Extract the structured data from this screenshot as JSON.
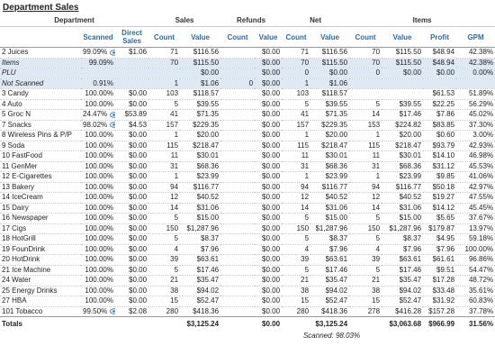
{
  "title": "Department Sales",
  "table": {
    "groups": [
      "Department",
      "Sales",
      "Refunds",
      "Net",
      "Items"
    ],
    "subheaders": [
      null,
      "Scanned",
      "Direct Sales",
      "Count",
      "Value",
      "Count",
      "Value",
      "Count",
      "Value",
      "Count",
      "Value",
      "Profit",
      "GPM"
    ],
    "rows": [
      {
        "cells": [
          "2 Juices",
          "99.09%",
          "$1.06",
          "71",
          "$116.56",
          null,
          "$0.00",
          "71",
          "$116.56",
          "70",
          "$115.50",
          "$48.94",
          "42.38%"
        ],
        "icon": true
      },
      {
        "cells": [
          "Items",
          "99.09%",
          null,
          "70",
          "$115.50",
          null,
          "$0.00",
          "70",
          "$115.50",
          "70",
          "$115.50",
          "$48.94",
          "42.38%"
        ],
        "kind": "sub"
      },
      {
        "cells": [
          "PLU",
          null,
          null,
          null,
          "$0.00",
          null,
          "$0.00",
          "0",
          "$0.00",
          "0",
          "$0.00",
          "$0.00",
          "0.00%"
        ],
        "kind": "sub"
      },
      {
        "cells": [
          "Not Scanned",
          "0.91%",
          null,
          "1",
          "$1.06",
          "0",
          "$0.00",
          "1",
          "$1.06",
          null,
          null,
          null,
          null
        ],
        "kind": "sub"
      },
      {
        "cells": [
          "3 Candy",
          "100.00%",
          "$0.00",
          "103",
          "$118.57",
          null,
          "$0.00",
          "103",
          "$118.57",
          null,
          null,
          "$61.53",
          "51.89%"
        ]
      },
      {
        "cells": [
          "4 Auto",
          "100.00%",
          "$0.00",
          "5",
          "$39.55",
          null,
          "$0.00",
          "5",
          "$39.55",
          "5",
          "$39.55",
          "$22.25",
          "56.29%"
        ]
      },
      {
        "cells": [
          "5 Groc N",
          "24.47%",
          "$53.89",
          "41",
          "$71.35",
          null,
          "$0.00",
          "41",
          "$71.35",
          "14",
          "$17.46",
          "$7.86",
          "45.02%"
        ],
        "icon": true
      },
      {
        "cells": [
          "7 Snacks",
          "98.02%",
          "$4.53",
          "157",
          "$229.35",
          null,
          "$0.00",
          "157",
          "$229.35",
          "153",
          "$224.82",
          "$83.85",
          "37.30%"
        ],
        "icon": true
      },
      {
        "cells": [
          "8 Wireless Pins & P/P",
          "100.00%",
          "$0.00",
          "1",
          "$20.00",
          null,
          "$0.00",
          "1",
          "$20.00",
          "1",
          "$20.00",
          "$0.60",
          "3.00%"
        ]
      },
      {
        "cells": [
          "9 Soda",
          "100.00%",
          "$0.00",
          "115",
          "$218.47",
          null,
          "$0.00",
          "115",
          "$218.47",
          "115",
          "$218.47",
          "$93.79",
          "42.93%"
        ]
      },
      {
        "cells": [
          "10 FastFood",
          "100.00%",
          "$0.00",
          "11",
          "$30.01",
          null,
          "$0.00",
          "11",
          "$30.01",
          "11",
          "$30.01",
          "$14.10",
          "46.98%"
        ]
      },
      {
        "cells": [
          "11 GenMer",
          "100.00%",
          "$0.00",
          "31",
          "$68.36",
          null,
          "$0.00",
          "31",
          "$68.36",
          "31",
          "$68.36",
          "$31.12",
          "45.53%"
        ]
      },
      {
        "cells": [
          "12 E-Cigarettes",
          "100.00%",
          "$0.00",
          "1",
          "$23.99",
          null,
          "$0.00",
          "1",
          "$23.99",
          "1",
          "$23.99",
          "$9.85",
          "41.06%"
        ]
      },
      {
        "cells": [
          "13 Bakery",
          "100.00%",
          "$0.00",
          "94",
          "$116.77",
          null,
          "$0.00",
          "94",
          "$116.77",
          "94",
          "$116.77",
          "$50.18",
          "42.97%"
        ]
      },
      {
        "cells": [
          "14 IceCream",
          "100.00%",
          "$0.00",
          "12",
          "$40.52",
          null,
          "$0.00",
          "12",
          "$40.52",
          "12",
          "$40.52",
          "$19.27",
          "47.55%"
        ]
      },
      {
        "cells": [
          "15 Dairy",
          "100.00%",
          "$0.00",
          "14",
          "$31.06",
          null,
          "$0.00",
          "14",
          "$31.06",
          "14",
          "$31.06",
          "$14.12",
          "45.45%"
        ]
      },
      {
        "cells": [
          "16 Newspaper",
          "100.00%",
          "$0.00",
          "5",
          "$15.00",
          null,
          "$0.00",
          "5",
          "$15.00",
          "5",
          "$15.00",
          "$5.65",
          "37.67%"
        ]
      },
      {
        "cells": [
          "17 Cigs",
          "100.00%",
          "$0.00",
          "150",
          "$1,287.96",
          null,
          "$0.00",
          "150",
          "$1,287.96",
          "150",
          "$1,287.96",
          "$179.87",
          "13.97%"
        ]
      },
      {
        "cells": [
          "18 HotGrill",
          "100.00%",
          "$0.00",
          "5",
          "$8.37",
          null,
          "$0.00",
          "5",
          "$8.37",
          "5",
          "$8.37",
          "$4.95",
          "59.18%"
        ]
      },
      {
        "cells": [
          "19 FounDrink",
          "100.00%",
          "$0.00",
          "4",
          "$7.96",
          null,
          "$0.00",
          "4",
          "$7.96",
          "4",
          "$7.96",
          "$7.96",
          "100.00%"
        ]
      },
      {
        "cells": [
          "20 HotDrink",
          "100.00%",
          "$0.00",
          "39",
          "$63.61",
          null,
          "$0.00",
          "39",
          "$63.61",
          "39",
          "$63.61",
          "$61.61",
          "96.86%"
        ]
      },
      {
        "cells": [
          "21 Ice Machine",
          "100.00%",
          "$0.00",
          "5",
          "$17.46",
          null,
          "$0.00",
          "5",
          "$17.46",
          "5",
          "$17.46",
          "$9.51",
          "54.47%"
        ]
      },
      {
        "cells": [
          "24 Water",
          "100.00%",
          "$0.00",
          "21",
          "$35.47",
          null,
          "$0.00",
          "21",
          "$35.47",
          "21",
          "$35.47",
          "$17.28",
          "48.72%"
        ]
      },
      {
        "cells": [
          "25 Energy Drinks",
          "100.00%",
          "$0.00",
          "38",
          "$94.02",
          null,
          "$0.00",
          "38",
          "$94.02",
          "38",
          "$94.02",
          "$33.48",
          "35.61%"
        ]
      },
      {
        "cells": [
          "27 HBA",
          "100.00%",
          "$0.00",
          "15",
          "$52.47",
          null,
          "$0.00",
          "15",
          "$52.47",
          "15",
          "$52.47",
          "$31.92",
          "60.83%"
        ]
      },
      {
        "cells": [
          "101 Tobacco",
          "99.50%",
          "$2.08",
          "280",
          "$418.36",
          null,
          "$0.00",
          "280",
          "$418.36",
          "278",
          "$416.28",
          "$157.28",
          "37.78%"
        ],
        "icon": true
      }
    ],
    "totals": [
      "Totals",
      null,
      null,
      null,
      "$3,125.24",
      null,
      "$0.00",
      null,
      "$3,125.24",
      null,
      "$3,063.68",
      "$966.99",
      "31.56%"
    ],
    "scanned_note": "Scanned: 98.03%"
  }
}
